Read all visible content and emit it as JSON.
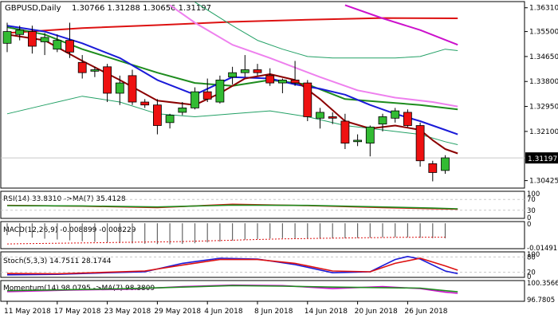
{
  "header": {
    "symbol": "GBPUSD,Daily",
    "ohlc": "1.30766 1.31288 1.30656 1.31197"
  },
  "colors": {
    "bull": "#33bb33",
    "bear": "#ee1111",
    "ma_fast": "#8b0000",
    "ma_blue": "#1a1ad8",
    "ma_green": "#1e8c1e",
    "ma_pink": "#ee80ee",
    "ma_red": "#dd1111",
    "ma_magenta": "#cc11cc",
    "band": "#22a065",
    "axis": "#000000",
    "grid": "#c8c8c8",
    "price_tag_bg": "#000000",
    "price_tag_fg": "#ffffff"
  },
  "x_axis": {
    "labels": [
      "11 May 2018",
      "17 May 2018",
      "23 May 2018",
      "29 May 2018",
      "4 Jun 2018",
      "8 Jun 2018",
      "14 Jun 2018",
      "20 Jun 2018",
      "26 Jun 2018"
    ]
  },
  "price_axis": {
    "ticks": [
      "1.36310",
      "1.35500",
      "1.34650",
      "1.33800",
      "1.32950",
      "1.32100",
      "1.30425"
    ],
    "current": "1.31197"
  },
  "chart_data": [
    {
      "type": "candlestick",
      "name": "GBPUSD Daily",
      "ylim": [
        1.3017,
        1.3652
      ],
      "candles": [
        {
          "o": 1.351,
          "h": 1.358,
          "l": 1.348,
          "c": 1.355
        },
        {
          "o": 1.354,
          "h": 1.357,
          "l": 1.352,
          "c": 1.3555
        },
        {
          "o": 1.355,
          "h": 1.357,
          "l": 1.3475,
          "c": 1.35
        },
        {
          "o": 1.3515,
          "h": 1.3545,
          "l": 1.347,
          "c": 1.353
        },
        {
          "o": 1.349,
          "h": 1.354,
          "l": 1.348,
          "c": 1.352
        },
        {
          "o": 1.352,
          "h": 1.358,
          "l": 1.346,
          "c": 1.348
        },
        {
          "o": 1.3445,
          "h": 1.347,
          "l": 1.339,
          "c": 1.341
        },
        {
          "o": 1.3415,
          "h": 1.343,
          "l": 1.3395,
          "c": 1.342
        },
        {
          "o": 1.343,
          "h": 1.344,
          "l": 1.331,
          "c": 1.334
        },
        {
          "o": 1.334,
          "h": 1.34,
          "l": 1.33,
          "c": 1.3375
        },
        {
          "o": 1.34,
          "h": 1.342,
          "l": 1.33,
          "c": 1.331
        },
        {
          "o": 1.331,
          "h": 1.332,
          "l": 1.329,
          "c": 1.33
        },
        {
          "o": 1.33,
          "h": 1.332,
          "l": 1.32,
          "c": 1.323
        },
        {
          "o": 1.324,
          "h": 1.327,
          "l": 1.322,
          "c": 1.3265
        },
        {
          "o": 1.3275,
          "h": 1.331,
          "l": 1.3265,
          "c": 1.329
        },
        {
          "o": 1.329,
          "h": 1.336,
          "l": 1.3285,
          "c": 1.3345
        },
        {
          "o": 1.3345,
          "h": 1.339,
          "l": 1.331,
          "c": 1.332
        },
        {
          "o": 1.331,
          "h": 1.34,
          "l": 1.3305,
          "c": 1.3385
        },
        {
          "o": 1.3395,
          "h": 1.343,
          "l": 1.337,
          "c": 1.341
        },
        {
          "o": 1.341,
          "h": 1.347,
          "l": 1.3395,
          "c": 1.342
        },
        {
          "o": 1.342,
          "h": 1.344,
          "l": 1.34,
          "c": 1.341
        },
        {
          "o": 1.34,
          "h": 1.3425,
          "l": 1.3365,
          "c": 1.3375
        },
        {
          "o": 1.3375,
          "h": 1.339,
          "l": 1.334,
          "c": 1.3385
        },
        {
          "o": 1.3385,
          "h": 1.345,
          "l": 1.3365,
          "c": 1.3375
        },
        {
          "o": 1.3375,
          "h": 1.3385,
          "l": 1.3245,
          "c": 1.326
        },
        {
          "o": 1.3255,
          "h": 1.329,
          "l": 1.322,
          "c": 1.3275
        },
        {
          "o": 1.326,
          "h": 1.3275,
          "l": 1.3235,
          "c": 1.3255
        },
        {
          "o": 1.3245,
          "h": 1.327,
          "l": 1.315,
          "c": 1.317
        },
        {
          "o": 1.3175,
          "h": 1.32,
          "l": 1.316,
          "c": 1.318
        },
        {
          "o": 1.317,
          "h": 1.323,
          "l": 1.3125,
          "c": 1.3225
        },
        {
          "o": 1.3235,
          "h": 1.327,
          "l": 1.321,
          "c": 1.326
        },
        {
          "o": 1.3255,
          "h": 1.329,
          "l": 1.324,
          "c": 1.328
        },
        {
          "o": 1.3275,
          "h": 1.3285,
          "l": 1.3225,
          "c": 1.323
        },
        {
          "o": 1.323,
          "h": 1.324,
          "l": 1.309,
          "c": 1.311
        },
        {
          "o": 1.31,
          "h": 1.311,
          "l": 1.304,
          "c": 1.307
        },
        {
          "o": 1.3077,
          "h": 1.3129,
          "l": 1.3066,
          "c": 1.312
        }
      ],
      "overlays": [
        {
          "name": "ma_red",
          "color_key": "ma_red",
          "width": 2,
          "points": [
            [
              0,
              1.3545
            ],
            [
              6,
              1.3562
            ],
            [
              12,
              1.3572
            ],
            [
              18,
              1.3583
            ],
            [
              24,
              1.359
            ],
            [
              30,
              1.3596
            ],
            [
              36,
              1.3595
            ]
          ]
        },
        {
          "name": "ma_magenta",
          "color_key": "ma_magenta",
          "width": 2,
          "points": [
            [
              27,
              1.364
            ],
            [
              30,
              1.3595
            ],
            [
              33,
              1.3555
            ],
            [
              36,
              1.3505
            ]
          ]
        },
        {
          "name": "ma_pink",
          "color_key": "ma_pink",
          "width": 2,
          "points": [
            [
              13,
              1.364
            ],
            [
              15,
              1.358
            ],
            [
              18,
              1.3505
            ],
            [
              21,
              1.346
            ],
            [
              25,
              1.3395
            ],
            [
              28,
              1.335
            ],
            [
              31,
              1.3325
            ],
            [
              34,
              1.331
            ],
            [
              36,
              1.3295
            ]
          ]
        },
        {
          "name": "band_upper",
          "color_key": "band",
          "width": 1,
          "points": [
            [
              15,
              1.365
            ],
            [
              18,
              1.357
            ],
            [
              20,
              1.352
            ],
            [
              22,
              1.349
            ],
            [
              24,
              1.3465
            ],
            [
              26,
              1.346
            ],
            [
              29,
              1.346
            ],
            [
              31,
              1.346
            ],
            [
              33,
              1.3465
            ],
            [
              35,
              1.349
            ],
            [
              36,
              1.3485
            ]
          ]
        },
        {
          "name": "band_lower",
          "color_key": "band",
          "width": 1,
          "points": [
            [
              0,
              1.327
            ],
            [
              3,
              1.33
            ],
            [
              6,
              1.333
            ],
            [
              9,
              1.331
            ],
            [
              12,
              1.327
            ],
            [
              15,
              1.326
            ],
            [
              18,
              1.327
            ],
            [
              21,
              1.328
            ],
            [
              24,
              1.326
            ],
            [
              27,
              1.323
            ],
            [
              30,
              1.3215
            ],
            [
              33,
              1.32
            ],
            [
              35,
              1.3175
            ],
            [
              36,
              1.3165
            ]
          ]
        },
        {
          "name": "ma_green",
          "color_key": "ma_green",
          "width": 2,
          "points": [
            [
              0,
              1.3565
            ],
            [
              3,
              1.354
            ],
            [
              6,
              1.349
            ],
            [
              9,
              1.345
            ],
            [
              12,
              1.341
            ],
            [
              15,
              1.3375
            ],
            [
              18,
              1.3365
            ],
            [
              21,
              1.3385
            ],
            [
              24,
              1.337
            ],
            [
              27,
              1.332
            ],
            [
              30,
              1.331
            ],
            [
              33,
              1.33
            ],
            [
              36,
              1.3285
            ]
          ]
        },
        {
          "name": "ma_blue",
          "color_key": "ma_blue",
          "width": 2,
          "points": [
            [
              0,
              1.357
            ],
            [
              3,
              1.355
            ],
            [
              6,
              1.351
            ],
            [
              9,
              1.346
            ],
            [
              12,
              1.3385
            ],
            [
              15,
              1.3335
            ],
            [
              18,
              1.3395
            ],
            [
              21,
              1.339
            ],
            [
              23,
              1.337
            ],
            [
              25,
              1.3355
            ],
            [
              27,
              1.3335
            ],
            [
              29,
              1.33
            ],
            [
              31,
              1.327
            ],
            [
              33,
              1.3245
            ],
            [
              35,
              1.3215
            ],
            [
              36,
              1.32
            ]
          ]
        },
        {
          "name": "ma_fast",
          "color_key": "ma_fast",
          "width": 2,
          "points": [
            [
              0,
              1.354
            ],
            [
              3,
              1.352
            ],
            [
              6,
              1.345
            ],
            [
              9,
              1.3385
            ],
            [
              12,
              1.3315
            ],
            [
              15,
              1.33
            ],
            [
              17,
              1.334
            ],
            [
              19,
              1.339
            ],
            [
              21,
              1.3405
            ],
            [
              23,
              1.3385
            ],
            [
              25,
              1.332
            ],
            [
              27,
              1.3245
            ],
            [
              29,
              1.322
            ],
            [
              31,
              1.323
            ],
            [
              33,
              1.3215
            ],
            [
              34,
              1.318
            ],
            [
              35,
              1.315
            ],
            [
              36,
              1.3135
            ]
          ]
        }
      ]
    },
    {
      "type": "line",
      "name": "RSI",
      "label": "RSI(14) 33.8310 ->MA(7) 35.4128",
      "ylim": [
        0,
        100
      ],
      "ticks": [
        "100",
        "70",
        "30",
        "0"
      ],
      "levels": [
        70,
        30
      ],
      "series": [
        {
          "name": "RSI(14)",
          "color_key": "ma_red",
          "points": [
            [
              0,
              48
            ],
            [
              6,
              45
            ],
            [
              12,
              40
            ],
            [
              18,
              52
            ],
            [
              24,
              47
            ],
            [
              30,
              40
            ],
            [
              34,
              36
            ],
            [
              36,
              33.8
            ]
          ]
        },
        {
          "name": "MA(7)",
          "color_key": "ma_green",
          "points": [
            [
              0,
              47
            ],
            [
              6,
              46
            ],
            [
              12,
              42
            ],
            [
              18,
              49
            ],
            [
              24,
              48
            ],
            [
              30,
              42
            ],
            [
              34,
              38
            ],
            [
              36,
              35.4
            ]
          ]
        }
      ]
    },
    {
      "type": "histogram",
      "name": "MACD",
      "label": "MACD(12,26,9) -0.008899 -0.008229",
      "ylim": [
        -0.015,
        0.001
      ],
      "ticks": [
        "0",
        "-0.014917"
      ],
      "values": [
        -0.007,
        -0.0078,
        -0.0085,
        -0.0091,
        -0.0096,
        -0.0101,
        -0.0106,
        -0.011,
        -0.0114,
        -0.0117,
        -0.0119,
        -0.0121,
        -0.0123,
        -0.0124,
        -0.0122,
        -0.0118,
        -0.0113,
        -0.0108,
        -0.0102,
        -0.0097,
        -0.0093,
        -0.009,
        -0.0088,
        -0.0089,
        -0.0091,
        -0.0092,
        -0.009,
        -0.0089,
        -0.0087,
        -0.0085,
        -0.0083,
        -0.0082,
        -0.0083,
        -0.0086,
        -0.0088,
        -0.0089
      ],
      "signal": [
        -0.0122,
        -0.0121,
        -0.012,
        -0.0119,
        -0.0118,
        -0.0117,
        -0.0116,
        -0.0115,
        -0.0114,
        -0.0113,
        -0.0112,
        -0.0111,
        -0.011,
        -0.0109,
        -0.0108,
        -0.0106,
        -0.0104,
        -0.0102,
        -0.01,
        -0.0098,
        -0.0096,
        -0.0094,
        -0.0092,
        -0.0091,
        -0.009,
        -0.0089,
        -0.0088,
        -0.0087,
        -0.0086,
        -0.0085,
        -0.0084,
        -0.0083,
        -0.0083,
        -0.0082,
        -0.0082,
        -0.0082
      ]
    },
    {
      "type": "line",
      "name": "Stoch",
      "label": "Stoch(5,3,3) 14.7511 28.1744",
      "ylim": [
        0,
        100
      ],
      "ticks": [
        "100",
        "80",
        "20",
        "0"
      ],
      "levels": [
        80,
        20
      ],
      "series": [
        {
          "name": "%K",
          "color_key": "ma_blue",
          "points": [
            [
              0,
              10
            ],
            [
              4,
              12
            ],
            [
              8,
              18
            ],
            [
              11,
              22
            ],
            [
              14,
              55
            ],
            [
              17,
              75
            ],
            [
              20,
              72
            ],
            [
              23,
              50
            ],
            [
              26,
              18
            ],
            [
              29,
              22
            ],
            [
              31,
              70
            ],
            [
              32,
              82
            ],
            [
              33,
              72
            ],
            [
              35,
              25
            ],
            [
              36,
              14.75
            ]
          ]
        },
        {
          "name": "%D",
          "color_key": "ma_red",
          "points": [
            [
              0,
              15
            ],
            [
              4,
              14
            ],
            [
              8,
              20
            ],
            [
              11,
              25
            ],
            [
              14,
              48
            ],
            [
              17,
              70
            ],
            [
              20,
              70
            ],
            [
              23,
              55
            ],
            [
              26,
              25
            ],
            [
              29,
              22
            ],
            [
              31,
              55
            ],
            [
              33,
              75
            ],
            [
              35,
              45
            ],
            [
              36,
              28.17
            ]
          ]
        }
      ]
    },
    {
      "type": "line",
      "name": "Momentum",
      "label": "Momentum(14) 98.0795 ->MA(7) 98.3809",
      "ylim": [
        96.5,
        100.6
      ],
      "ticks": [
        "100.3566",
        "96.7805"
      ],
      "series": [
        {
          "name": "Momentum(14)",
          "color_key": "ma_magenta",
          "points": [
            [
              0,
              98.4
            ],
            [
              5,
              98.7
            ],
            [
              10,
              98.9
            ],
            [
              14,
              99.4
            ],
            [
              18,
              99.7
            ],
            [
              22,
              99.6
            ],
            [
              26,
              99.0
            ],
            [
              30,
              99.4
            ],
            [
              33,
              99.0
            ],
            [
              35,
              98.3
            ],
            [
              36,
              98.08
            ]
          ]
        },
        {
          "name": "MA(7)",
          "color_key": "ma_green",
          "points": [
            [
              0,
              98.6
            ],
            [
              5,
              98.8
            ],
            [
              10,
              99.0
            ],
            [
              14,
              99.3
            ],
            [
              18,
              99.6
            ],
            [
              22,
              99.5
            ],
            [
              26,
              99.3
            ],
            [
              30,
              99.2
            ],
            [
              33,
              99.1
            ],
            [
              35,
              98.6
            ],
            [
              36,
              98.38
            ]
          ]
        }
      ]
    }
  ]
}
